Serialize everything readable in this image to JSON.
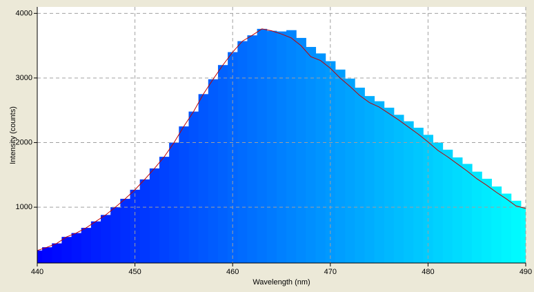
{
  "chart_data": {
    "type": "bar",
    "x_label": "Wavelength (nm)",
    "y_label": "Intensity (counts)",
    "x": [
      440,
      441,
      442,
      443,
      444,
      445,
      446,
      447,
      448,
      449,
      450,
      451,
      452,
      453,
      454,
      455,
      456,
      457,
      458,
      459,
      460,
      461,
      462,
      463,
      464,
      465,
      466,
      467,
      468,
      469,
      470,
      471,
      472,
      473,
      474,
      475,
      476,
      477,
      478,
      479,
      480,
      481,
      482,
      483,
      484,
      485,
      486,
      487,
      488,
      489,
      490
    ],
    "series": [
      {
        "type": "bar",
        "gradient": [
          "#0000ff",
          "#00ffff"
        ],
        "values": [
          330,
          380,
          440,
          540,
          600,
          680,
          780,
          880,
          1000,
          1130,
          1270,
          1430,
          1600,
          1780,
          2000,
          2250,
          2480,
          2750,
          2980,
          3200,
          3400,
          3570,
          3660,
          3760,
          3730,
          3720,
          3740,
          3620,
          3480,
          3380,
          3260,
          3130,
          2990,
          2850,
          2720,
          2640,
          2540,
          2430,
          2330,
          2230,
          2120,
          2000,
          1890,
          1770,
          1670,
          1550,
          1440,
          1320,
          1210,
          1100,
          1000
        ]
      },
      {
        "type": "line",
        "color": "#c00000",
        "values": [
          330,
          380,
          440,
          540,
          600,
          680,
          780,
          880,
          1000,
          1130,
          1270,
          1430,
          1600,
          1780,
          2000,
          2250,
          2480,
          2750,
          2980,
          3200,
          3400,
          3570,
          3660,
          3760,
          3730,
          3680,
          3620,
          3500,
          3330,
          3270,
          3150,
          3000,
          2870,
          2730,
          2620,
          2550,
          2450,
          2350,
          2240,
          2130,
          2010,
          1880,
          1780,
          1670,
          1560,
          1440,
          1340,
          1230,
          1130,
          1020,
          980
        ]
      }
    ],
    "xlim": [
      440,
      490
    ],
    "ylim": [
      136,
      4100
    ],
    "xticks": [
      440,
      450,
      460,
      470,
      480,
      490
    ],
    "yticks": [
      1000,
      2000,
      3000,
      4000
    ],
    "grid": true
  }
}
